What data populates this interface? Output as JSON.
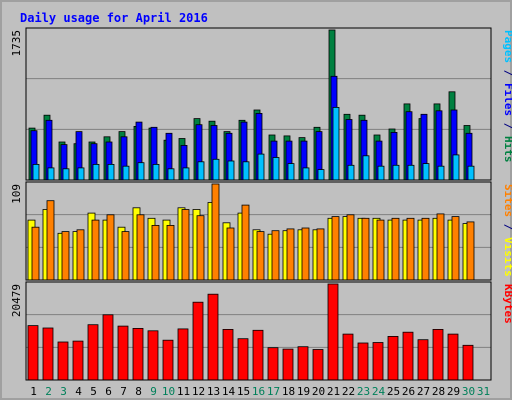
{
  "chart_data": [
    {
      "type": "bar",
      "title": "Daily usage for April 2016",
      "y_max_label": "1735",
      "categories": [
        "1",
        "2",
        "3",
        "4",
        "5",
        "6",
        "7",
        "8",
        "9",
        "10",
        "11",
        "12",
        "13",
        "14",
        "15",
        "16",
        "17",
        "18",
        "19",
        "20",
        "21",
        "22",
        "23",
        "24",
        "25",
        "26",
        "27",
        "28",
        "29",
        "30",
        "31"
      ],
      "weekend_categories": [
        "2",
        "3",
        "9",
        "10",
        "16",
        "17",
        "23",
        "24",
        "30",
        "31"
      ],
      "side_label": [
        {
          "text": "Pages",
          "color": "#00c0ff"
        },
        {
          "text": " / ",
          "color": "#000080"
        },
        {
          "text": "Files",
          "color": "#0000ff"
        },
        {
          "text": " / ",
          "color": "#000080"
        },
        {
          "text": "Hits",
          "color": "#008040"
        }
      ],
      "series": [
        {
          "name": "Hits",
          "color": "#008040",
          "values": [
            600,
            750,
            440,
            420,
            440,
            500,
            560,
            620,
            600,
            460,
            480,
            710,
            680,
            560,
            690,
            810,
            520,
            510,
            490,
            610,
            1735,
            760,
            750,
            520,
            590,
            880,
            710,
            880,
            1020,
            630,
            0
          ]
        },
        {
          "name": "Files",
          "color": "#0000ff",
          "values": [
            570,
            690,
            410,
            560,
            420,
            440,
            500,
            670,
            610,
            540,
            400,
            640,
            630,
            540,
            670,
            770,
            450,
            450,
            450,
            560,
            1200,
            700,
            690,
            450,
            550,
            790,
            760,
            800,
            810,
            540,
            0
          ]
        },
        {
          "name": "Pages",
          "color": "#00c0ff",
          "values": [
            180,
            140,
            130,
            140,
            180,
            180,
            160,
            200,
            180,
            130,
            140,
            210,
            240,
            220,
            210,
            300,
            260,
            190,
            140,
            120,
            840,
            170,
            280,
            160,
            170,
            170,
            190,
            160,
            290,
            160,
            0
          ]
        }
      ]
    },
    {
      "type": "bar",
      "y_max_label": "109",
      "side_label": [
        {
          "text": "Sites",
          "color": "#ff8000"
        },
        {
          "text": " / ",
          "color": "#000080"
        },
        {
          "text": "Visits",
          "color": "#ffff00"
        }
      ],
      "series": [
        {
          "name": "Visits",
          "color": "#ffff00",
          "values": [
            68,
            80,
            53,
            55,
            76,
            68,
            60,
            82,
            70,
            68,
            82,
            80,
            88,
            65,
            76,
            57,
            52,
            56,
            57,
            57,
            70,
            72,
            70,
            70,
            68,
            68,
            68,
            70,
            68,
            64,
            0
          ]
        },
        {
          "name": "Sites",
          "color": "#ff8000",
          "values": [
            60,
            90,
            55,
            57,
            68,
            74,
            55,
            74,
            62,
            62,
            80,
            73,
            109,
            59,
            85,
            55,
            56,
            58,
            59,
            58,
            72,
            74,
            70,
            68,
            70,
            70,
            70,
            75,
            72,
            66,
            0
          ]
        }
      ]
    },
    {
      "type": "bar",
      "y_max_label": "20479",
      "side_label": [
        {
          "text": "KBytes",
          "color": "#ff0000"
        }
      ],
      "series": [
        {
          "name": "KBytes",
          "color": "#ff0000",
          "values": [
            11600,
            11100,
            8100,
            8300,
            11800,
            13900,
            11500,
            11000,
            10500,
            8500,
            10900,
            16600,
            18300,
            10800,
            8800,
            10600,
            6900,
            6600,
            7100,
            6500,
            20479,
            9800,
            7900,
            8000,
            9300,
            10200,
            8600,
            10800,
            9800,
            7400,
            0
          ]
        }
      ]
    }
  ]
}
